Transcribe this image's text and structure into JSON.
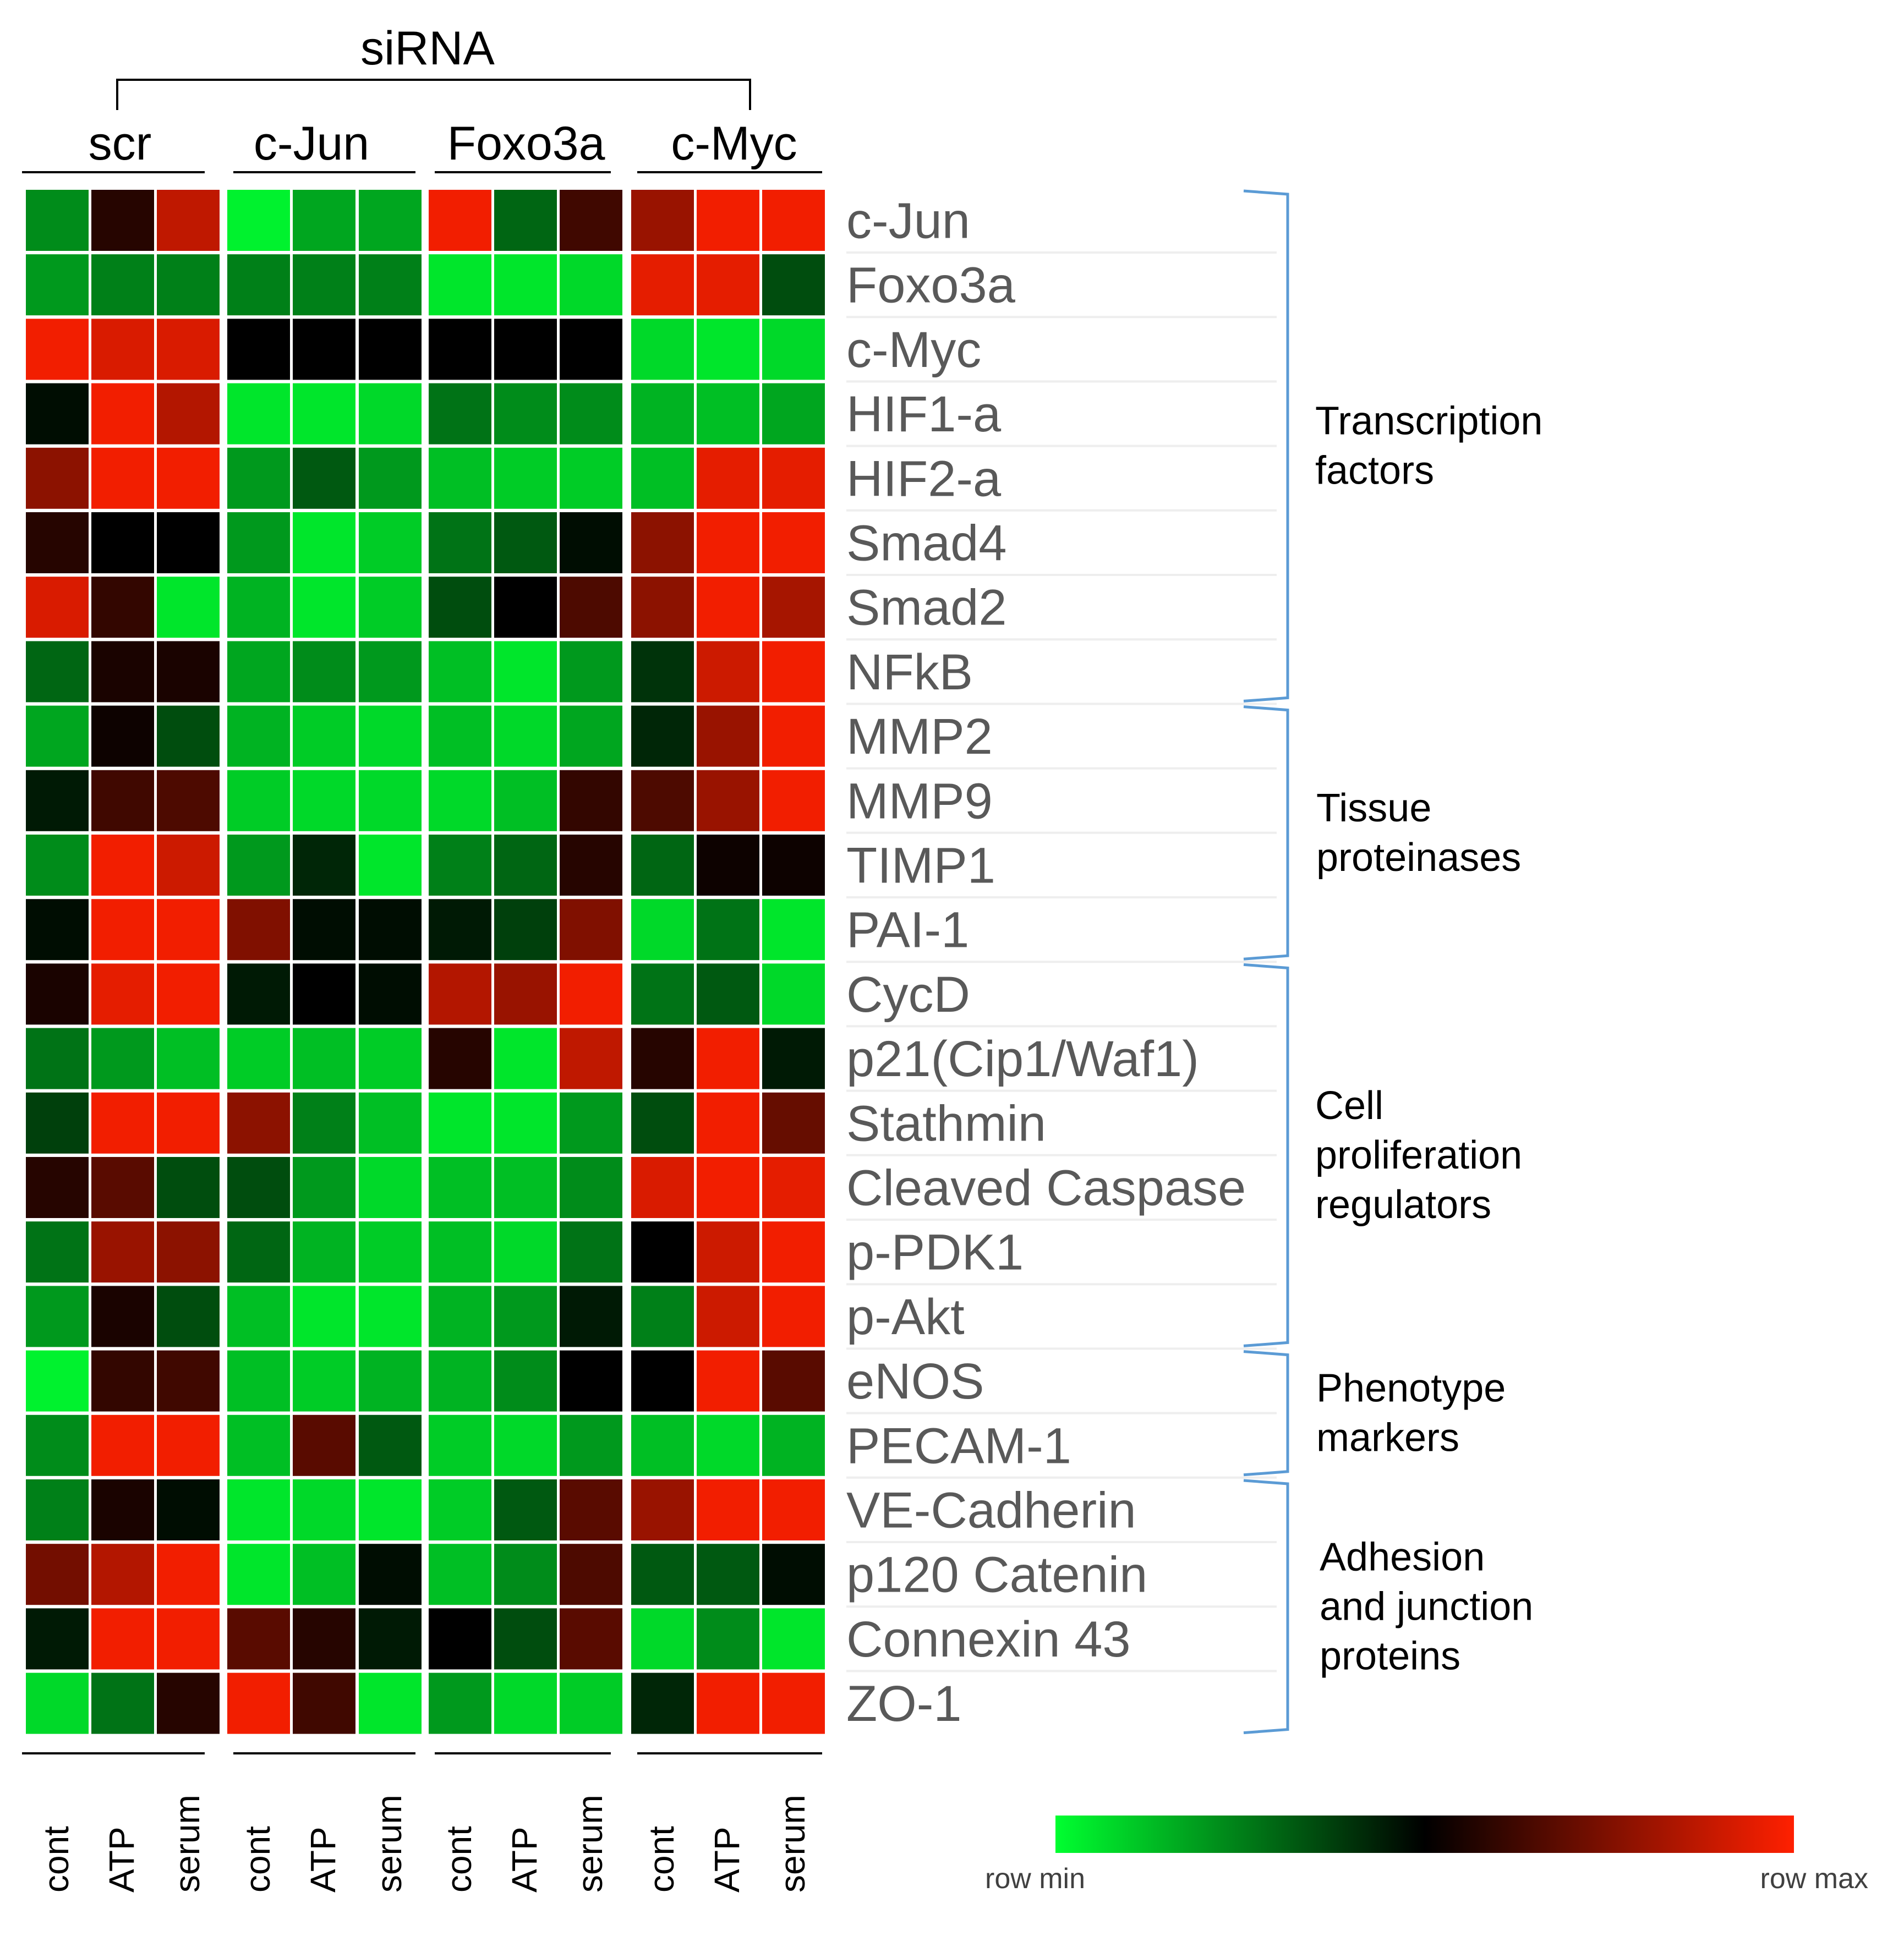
{
  "chart_data": {
    "type": "heatmap",
    "title": "",
    "top_label": "siRNA",
    "groups": [
      "scr",
      "c-Jun",
      "Foxo3a",
      "c-Myc"
    ],
    "conditions": [
      "cont",
      "ATP",
      "serum"
    ],
    "columns": [
      {
        "group": "scr",
        "condition": "cont"
      },
      {
        "group": "scr",
        "condition": "ATP"
      },
      {
        "group": "scr",
        "condition": "serum"
      },
      {
        "group": "c-Jun",
        "condition": "cont"
      },
      {
        "group": "c-Jun",
        "condition": "ATP"
      },
      {
        "group": "c-Jun",
        "condition": "serum"
      },
      {
        "group": "Foxo3a",
        "condition": "cont"
      },
      {
        "group": "Foxo3a",
        "condition": "ATP"
      },
      {
        "group": "Foxo3a",
        "condition": "serum"
      },
      {
        "group": "c-Myc",
        "condition": "cont"
      },
      {
        "group": "c-Myc",
        "condition": "ATP"
      },
      {
        "group": "c-Myc",
        "condition": "serum"
      }
    ],
    "rows": [
      "c-Jun",
      "Foxo3a",
      "c-Myc",
      "HIF1-a",
      "HIF2-a",
      "Smad4",
      "Smad2",
      "NFkB",
      "MMP2",
      "MMP9",
      "TIMP1",
      "PAI-1",
      "CycD",
      "p21(Cip1/Waf1)",
      "Stathmin",
      "Cleaved Caspase",
      "p-PDK1",
      "p-Akt",
      "eNOS",
      "PECAM-1",
      "VE-Cadherin",
      "p120 Catenin",
      "Connexin 43",
      "ZO-1"
    ],
    "categories": [
      {
        "label": "Transcription factors",
        "lines": [
          "Transcription",
          "factors"
        ],
        "first_row": 0,
        "last_row": 7
      },
      {
        "label": "Tissue proteinases",
        "lines": [
          "Tissue",
          "proteinases"
        ],
        "first_row": 8,
        "last_row": 11
      },
      {
        "label": "Cell proliferation regulators",
        "lines": [
          "Cell",
          "proliferation",
          "regulators"
        ],
        "first_row": 12,
        "last_row": 17
      },
      {
        "label": "Phenotype markers",
        "lines": [
          "Phenotype",
          "markers"
        ],
        "first_row": 18,
        "last_row": 19
      },
      {
        "label": "Adhesion and junction proteins",
        "lines": [
          "Adhesion",
          "and junction",
          "proteins"
        ],
        "first_row": 20,
        "last_row": 23
      }
    ],
    "value_scale": {
      "min": -1,
      "max": 1,
      "note": "values are row-normalized: -1 = row min, +1 = row max"
    },
    "values": [
      [
        -0.55,
        0.15,
        0.75,
        -0.95,
        -0.65,
        -0.65,
        0.95,
        -0.4,
        0.25,
        0.6,
        0.95,
        0.95
      ],
      [
        -0.6,
        -0.5,
        -0.5,
        -0.5,
        -0.5,
        -0.5,
        -0.9,
        -0.9,
        -0.85,
        0.9,
        0.9,
        -0.3
      ],
      [
        0.95,
        0.85,
        0.85,
        0.0,
        0.0,
        0.0,
        0.0,
        0.0,
        0.0,
        -0.85,
        -0.9,
        -0.85
      ],
      [
        -0.05,
        0.95,
        0.7,
        -0.9,
        -0.9,
        -0.85,
        -0.45,
        -0.55,
        -0.55,
        -0.7,
        -0.75,
        -0.65
      ],
      [
        0.55,
        0.95,
        0.95,
        -0.6,
        -0.35,
        -0.6,
        -0.75,
        -0.8,
        -0.8,
        -0.75,
        0.9,
        0.9
      ],
      [
        0.15,
        0.0,
        0.0,
        -0.6,
        -0.9,
        -0.8,
        -0.45,
        -0.35,
        -0.05,
        0.55,
        0.95,
        0.95
      ],
      [
        0.85,
        0.2,
        -0.9,
        -0.7,
        -0.9,
        -0.8,
        -0.3,
        0.0,
        0.3,
        0.55,
        0.95,
        0.65
      ],
      [
        -0.4,
        0.1,
        0.1,
        -0.65,
        -0.55,
        -0.6,
        -0.75,
        -0.9,
        -0.6,
        -0.2,
        0.8,
        0.95
      ],
      [
        -0.65,
        0.05,
        -0.3,
        -0.7,
        -0.8,
        -0.85,
        -0.75,
        -0.85,
        -0.65,
        -0.15,
        0.6,
        0.95
      ],
      [
        -0.1,
        0.25,
        0.3,
        -0.8,
        -0.85,
        -0.85,
        -0.85,
        -0.75,
        0.2,
        0.3,
        0.6,
        0.95
      ],
      [
        -0.55,
        0.95,
        0.8,
        -0.6,
        -0.15,
        -0.9,
        -0.5,
        -0.4,
        0.15,
        -0.4,
        0.05,
        0.05
      ],
      [
        -0.05,
        0.95,
        0.95,
        0.5,
        -0.05,
        -0.05,
        -0.1,
        -0.25,
        0.5,
        -0.85,
        -0.45,
        -0.9
      ],
      [
        0.1,
        0.9,
        0.95,
        -0.1,
        0.0,
        -0.05,
        0.7,
        0.6,
        0.95,
        -0.45,
        -0.35,
        -0.85
      ],
      [
        -0.45,
        -0.6,
        -0.75,
        -0.8,
        -0.75,
        -0.8,
        0.15,
        -0.9,
        0.75,
        0.15,
        0.95,
        -0.1
      ],
      [
        -0.25,
        0.95,
        0.95,
        0.55,
        -0.5,
        -0.75,
        -0.9,
        -0.9,
        -0.6,
        -0.3,
        0.95,
        0.4
      ],
      [
        0.15,
        0.35,
        -0.3,
        -0.3,
        -0.6,
        -0.85,
        -0.75,
        -0.75,
        -0.55,
        0.85,
        0.95,
        0.9
      ],
      [
        -0.45,
        0.6,
        0.55,
        -0.4,
        -0.7,
        -0.8,
        -0.75,
        -0.85,
        -0.45,
        0.0,
        0.8,
        0.95
      ],
      [
        -0.6,
        0.1,
        -0.3,
        -0.75,
        -0.9,
        -0.9,
        -0.7,
        -0.6,
        -0.1,
        -0.5,
        0.8,
        0.95
      ],
      [
        -0.95,
        0.2,
        0.25,
        -0.75,
        -0.8,
        -0.7,
        -0.7,
        -0.55,
        0.0,
        0.0,
        0.95,
        0.35
      ],
      [
        -0.55,
        0.95,
        0.95,
        -0.75,
        0.35,
        -0.35,
        -0.8,
        -0.85,
        -0.6,
        -0.75,
        -0.85,
        -0.7
      ],
      [
        -0.5,
        0.1,
        -0.05,
        -0.9,
        -0.85,
        -0.9,
        -0.8,
        -0.35,
        0.35,
        0.6,
        0.95,
        0.95
      ],
      [
        0.45,
        0.7,
        0.95,
        -0.9,
        -0.75,
        -0.05,
        -0.75,
        -0.55,
        0.3,
        -0.35,
        -0.35,
        -0.05
      ],
      [
        -0.1,
        0.95,
        0.95,
        0.35,
        0.15,
        -0.1,
        0.0,
        -0.3,
        0.35,
        -0.85,
        -0.55,
        -0.9
      ],
      [
        -0.85,
        -0.45,
        0.15,
        0.95,
        0.25,
        -0.9,
        -0.6,
        -0.85,
        -0.8,
        -0.15,
        0.95,
        0.95
      ]
    ],
    "colorscale": {
      "min_color": "#00ff30",
      "mid_color": "#000000",
      "max_color": "#ff2000",
      "min_label": "row min",
      "max_label": "row max"
    },
    "bracket_color": "#5b9bd5"
  }
}
